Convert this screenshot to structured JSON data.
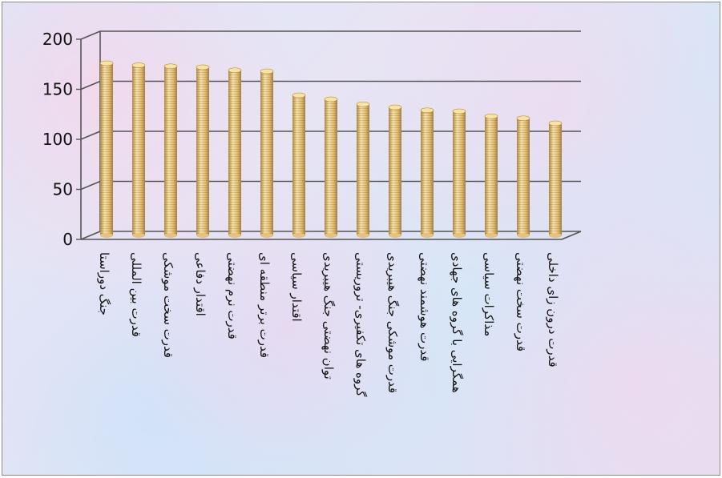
{
  "chart_data": {
    "type": "bar",
    "title": "",
    "xlabel": "",
    "ylabel": "",
    "ylim": [
      0,
      200
    ],
    "y_ticks": [
      0,
      50,
      100,
      150,
      200
    ],
    "grid": true,
    "categories": [
      "جنگ دوراستا",
      "قدرت بین المللی",
      "قدرت سخت موشکی",
      "اقتدار دفاعی",
      "قدرت نرم نهضتی",
      "قدرت برتر منطقه ای",
      "اقتدار سیاسی",
      "توان نهضتی جنگ هیبریدی",
      "گروه های تکفیری- تروریستی",
      "قدرت موشکی جنگ هیبریدی",
      "قدرت هوشمند نهضتی",
      "همگرایی با گروه های جهادی",
      "مذاکرات سیاسی",
      "قدرت سخت نهضتی",
      "قدرت درون زای داخلی"
    ],
    "values": [
      172,
      170,
      169,
      168,
      165,
      164,
      140,
      136,
      131,
      128,
      125,
      124,
      119,
      117,
      112
    ],
    "colors": {
      "bar_light": "#f7e2a8",
      "bar_mid": "#e6c27a",
      "bar_dark": "#a98243",
      "grid": "#555555"
    }
  }
}
